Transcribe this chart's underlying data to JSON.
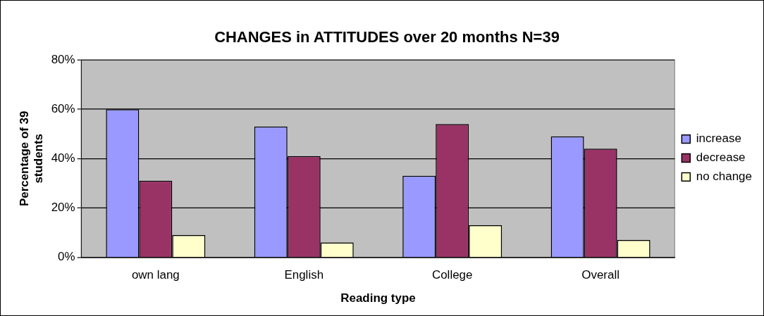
{
  "chart_data": {
    "type": "bar",
    "title": "CHANGES in ATTITUDES over 20 months N=39",
    "xlabel": "Reading type",
    "ylabel": "Percentage of 39 students",
    "categories": [
      "own lang",
      "English",
      "College",
      "Overall"
    ],
    "series": [
      {
        "name": "increase",
        "color": "#9999ff",
        "values": [
          60,
          53,
          33,
          49
        ]
      },
      {
        "name": "decrease",
        "color": "#993366",
        "values": [
          31,
          41,
          54,
          44
        ]
      },
      {
        "name": "no change",
        "color": "#ffffcc",
        "values": [
          9,
          6,
          13,
          7
        ]
      }
    ],
    "ylim": [
      0,
      80
    ],
    "yticks": [
      {
        "value": 0,
        "label": "0%"
      },
      {
        "value": 20,
        "label": "20%"
      },
      {
        "value": 40,
        "label": "40%"
      },
      {
        "value": 60,
        "label": "60%"
      },
      {
        "value": 80,
        "label": "80%"
      }
    ],
    "grid": "y",
    "legend": "right"
  }
}
